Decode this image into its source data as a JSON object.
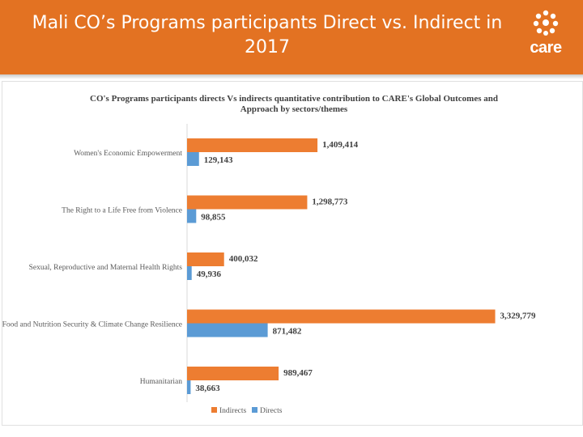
{
  "header": {
    "title": "Mali CO’s Programs participants Direct vs. Indirect in 2017",
    "logo_text": "care"
  },
  "colors": {
    "header_bg": "#e37222",
    "indirects": "#ed7d31",
    "directs": "#5b9bd5"
  },
  "chart_data": {
    "type": "bar",
    "orientation": "horizontal",
    "title": "CO's Programs participants directs Vs indirects  quantitative contribution to CARE's Global Outcomes and Approach by sectors/themes",
    "categories": [
      "Women's Economic Empowerment",
      "The Right to a Life Free from Violence",
      "Sexual, Reproductive and Maternal Health Rights",
      "Food and Nutrition Security & Climate Change Resilience",
      "Humanitarian"
    ],
    "series": [
      {
        "name": "Indirects",
        "values": [
          1409414,
          1298773,
          400032,
          3329779,
          989467
        ],
        "labels": [
          "1,409,414",
          "1,298,773",
          "400,032",
          "3,329,779",
          "989,467"
        ]
      },
      {
        "name": "Directs",
        "values": [
          129143,
          98855,
          49936,
          871482,
          38663
        ],
        "labels": [
          "129,143",
          "98,855",
          "49,936",
          "871,482",
          "38,663"
        ]
      }
    ],
    "xlim": [
      0,
      3500000
    ],
    "legend": "bottom",
    "grid": false
  }
}
